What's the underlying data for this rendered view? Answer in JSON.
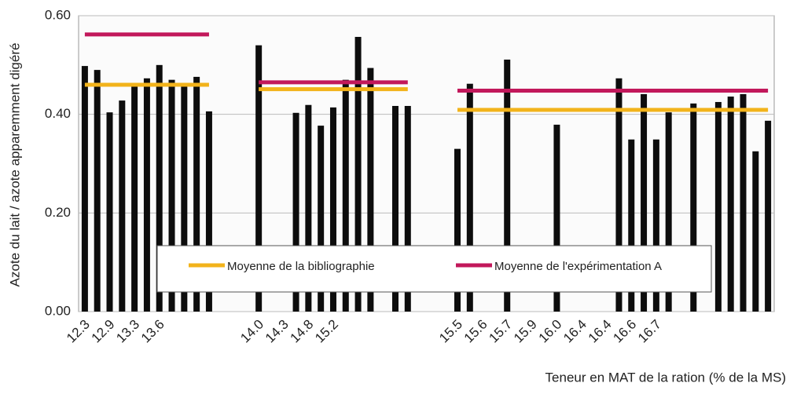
{
  "chart_data": {
    "type": "bar",
    "ylabel": "Azote du lait / azote apparemment digéré",
    "xlabel": "Teneur en MAT de la ration (% de la MS)",
    "ylim": [
      0,
      0.6
    ],
    "yticks": [
      {
        "value": 0,
        "label": "0.00"
      },
      {
        "value": 0.2,
        "label": "0.20"
      },
      {
        "value": 0.4,
        "label": "0.40"
      },
      {
        "value": 0.6,
        "label": "0.60"
      }
    ],
    "grid": true,
    "categories": [
      "12.3",
      null,
      "12.9",
      null,
      "13.3",
      null,
      "13.6",
      null,
      null,
      null,
      null,
      null,
      null,
      null,
      "14.0",
      null,
      "14.3",
      null,
      "14.8",
      null,
      "15.2",
      null,
      null,
      null,
      null,
      null,
      null,
      null,
      null,
      null,
      "15.5",
      null,
      "15.6",
      null,
      "15.7",
      null,
      "15.9",
      null,
      "16.0",
      null,
      "16.4",
      null,
      "16.4",
      null,
      "16.6",
      null,
      "16.7",
      null,
      null,
      null,
      null,
      null,
      null,
      null,
      null,
      null
    ],
    "series": [
      {
        "type": "bar",
        "color": "#0d0d0d",
        "values": [
          0.498,
          0.49,
          0.404,
          0.428,
          0.46,
          0.473,
          0.5,
          0.47,
          0.46,
          0.476,
          0.406,
          null,
          null,
          null,
          0.54,
          null,
          null,
          0.403,
          0.419,
          0.377,
          0.414,
          0.47,
          0.557,
          0.494,
          null,
          0.417,
          0.417,
          null,
          null,
          null,
          0.33,
          0.462,
          null,
          null,
          0.511,
          null,
          null,
          null,
          0.379,
          null,
          null,
          null,
          null,
          0.473,
          0.349,
          0.441,
          0.349,
          0.404,
          null,
          0.422,
          null,
          0.425,
          0.436,
          0.441,
          0.325,
          0.387
        ]
      },
      {
        "type": "line",
        "name": "Moyenne de la bibliographie",
        "color": "#f2b31b",
        "values": [
          0.46,
          0.46,
          0.46,
          0.46,
          0.46,
          0.46,
          0.46,
          0.46,
          0.46,
          0.46,
          0.46,
          null,
          null,
          null,
          0.451,
          0.451,
          0.451,
          0.451,
          0.451,
          0.451,
          0.451,
          0.451,
          0.451,
          0.451,
          0.451,
          0.451,
          0.451,
          null,
          null,
          null,
          0.409,
          0.409,
          0.409,
          0.409,
          0.409,
          0.409,
          0.409,
          0.409,
          0.409,
          0.409,
          0.409,
          0.409,
          0.409,
          0.409,
          0.409,
          0.409,
          0.409,
          0.409,
          0.409,
          0.409,
          0.409,
          0.409,
          0.409,
          0.409,
          0.409,
          0.409
        ]
      },
      {
        "type": "line",
        "name": "Moyenne de l'expérimentation A",
        "color": "#c2185b",
        "values": [
          0.562,
          0.562,
          0.562,
          0.562,
          0.562,
          0.562,
          0.562,
          0.562,
          0.562,
          0.562,
          0.562,
          null,
          null,
          null,
          0.465,
          0.465,
          0.465,
          0.465,
          0.465,
          0.465,
          0.465,
          0.465,
          0.465,
          0.465,
          0.465,
          0.465,
          0.465,
          null,
          null,
          null,
          0.448,
          0.448,
          0.448,
          0.448,
          0.448,
          0.448,
          0.448,
          0.448,
          0.448,
          0.448,
          0.448,
          0.448,
          0.448,
          0.448,
          0.448,
          0.448,
          0.448,
          0.448,
          0.448,
          0.448,
          0.448,
          0.448,
          0.448,
          0.448,
          0.448,
          0.448
        ]
      }
    ]
  }
}
